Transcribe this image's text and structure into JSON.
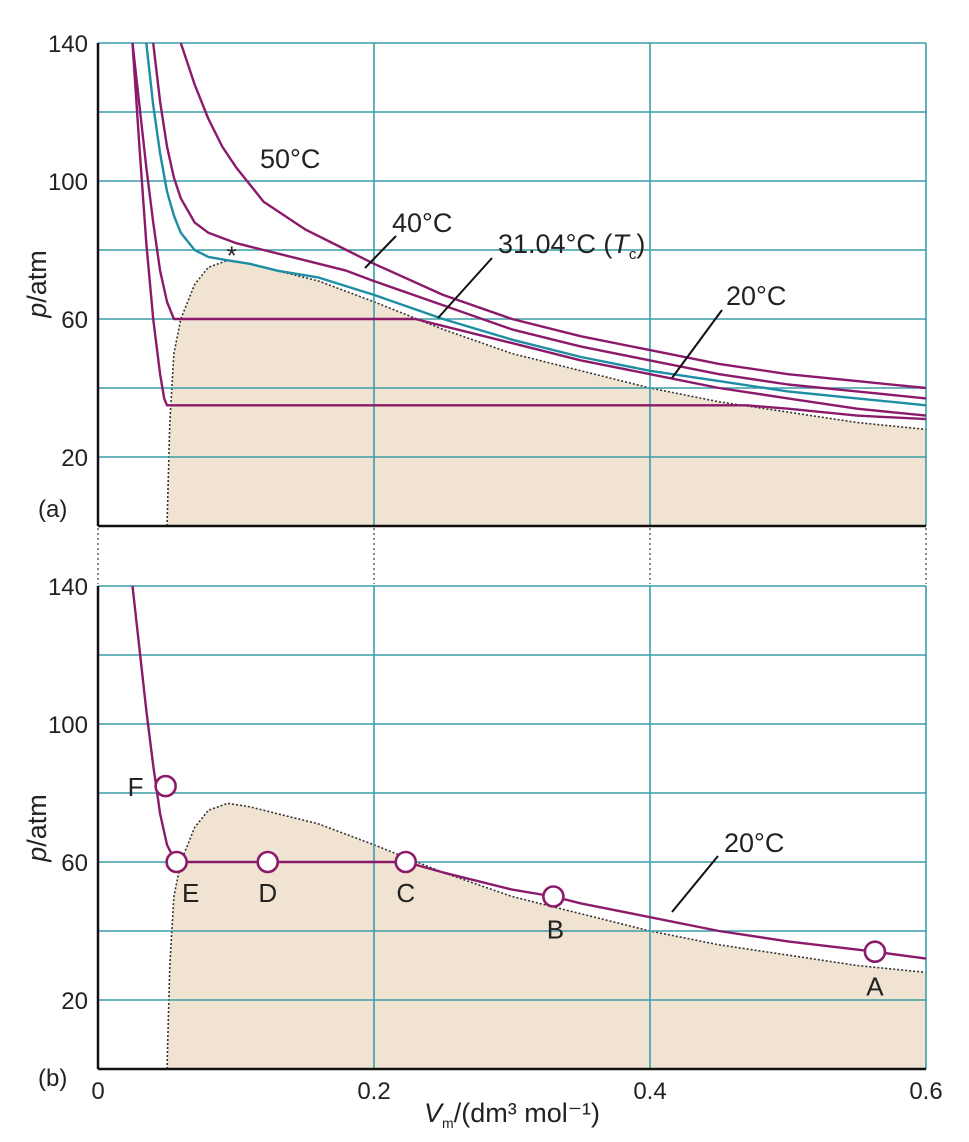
{
  "chart_data": [
    {
      "type": "line",
      "panel": "(a)",
      "ylabel": "p/atm",
      "xlim": [
        0,
        0.6
      ],
      "ylim": [
        0,
        140
      ],
      "y_ticks": [
        "20",
        "60",
        "100",
        "140"
      ],
      "grid": true,
      "fill_color": "#f0e3d1",
      "region_boundary": {
        "x": [
          0.05,
          0.052,
          0.055,
          0.06,
          0.07,
          0.08,
          0.094,
          0.11,
          0.13,
          0.16,
          0.2,
          0.25,
          0.3,
          0.35,
          0.4,
          0.45,
          0.5,
          0.55,
          0.6
        ],
        "y": [
          0,
          30,
          50,
          60,
          70,
          75,
          77,
          76,
          74,
          71,
          65,
          57,
          50,
          45,
          40,
          36,
          33,
          30,
          28
        ]
      },
      "critical_point": {
        "x": 0.094,
        "y": 77,
        "marker": "*"
      },
      "series": [
        {
          "name": "50°C",
          "color": "#8b1a6b",
          "x": [
            0.06,
            0.07,
            0.08,
            0.09,
            0.1,
            0.12,
            0.15,
            0.18,
            0.2,
            0.25,
            0.3,
            0.35,
            0.4,
            0.45,
            0.5,
            0.55,
            0.6
          ],
          "y": [
            140,
            128,
            118,
            110,
            104,
            94,
            86,
            80,
            76,
            67,
            60,
            55,
            51,
            47,
            44,
            42,
            40
          ]
        },
        {
          "name": "40°C",
          "color": "#8b1a6b",
          "x": [
            0.04,
            0.045,
            0.05,
            0.055,
            0.06,
            0.07,
            0.08,
            0.1,
            0.12,
            0.15,
            0.18,
            0.2,
            0.25,
            0.3,
            0.35,
            0.4,
            0.45,
            0.5,
            0.55,
            0.6
          ],
          "y": [
            140,
            123,
            110,
            101,
            95,
            88,
            85,
            82,
            80,
            77,
            74,
            71,
            64,
            57,
            52,
            48,
            44,
            41,
            39,
            37
          ]
        },
        {
          "name": "31.04°C (Tc)",
          "color": "#1d8ea3",
          "x": [
            0.035,
            0.04,
            0.045,
            0.05,
            0.055,
            0.06,
            0.07,
            0.08,
            0.094,
            0.11,
            0.13,
            0.16,
            0.2,
            0.25,
            0.3,
            0.35,
            0.4,
            0.45,
            0.5,
            0.55,
            0.6
          ],
          "y": [
            140,
            122,
            108,
            97,
            90,
            85,
            80,
            78,
            77,
            76,
            74,
            72,
            67,
            60,
            54,
            49,
            45,
            42,
            39,
            37,
            35
          ]
        },
        {
          "name": "20°C",
          "color": "#8b1a6b",
          "x": [
            0.025,
            0.03,
            0.035,
            0.04,
            0.045,
            0.05,
            0.055,
            0.06,
            0.08,
            0.1,
            0.15,
            0.2,
            0.23,
            0.25,
            0.3,
            0.35,
            0.4,
            0.45,
            0.5,
            0.55,
            0.6
          ],
          "y": [
            140,
            122,
            104,
            88,
            74,
            65,
            60,
            60,
            60,
            60,
            60,
            60,
            60,
            58,
            53,
            48,
            44,
            40,
            37,
            34,
            32
          ]
        },
        {
          "name": "",
          "color": "#8b1a6b",
          "x": [
            0.025,
            0.03,
            0.035,
            0.04,
            0.045,
            0.048,
            0.05,
            0.1,
            0.2,
            0.3,
            0.4,
            0.47,
            0.5,
            0.55,
            0.6
          ],
          "y": [
            140,
            110,
            82,
            60,
            44,
            37,
            35,
            35,
            35,
            35,
            35,
            35,
            34,
            32,
            31
          ]
        }
      ],
      "labels": [
        "50°C",
        "40°C",
        "31.04°C (",
        "T",
        "c",
        ")",
        "20°C"
      ]
    },
    {
      "type": "line",
      "panel": "(b)",
      "xlabel": "Vm/(dm³ mol⁻¹)",
      "ylabel": "p/atm",
      "xlim": [
        0,
        0.6
      ],
      "ylim": [
        0,
        140
      ],
      "x_ticks": [
        "0",
        "0.2",
        "0.4",
        "0.6"
      ],
      "y_ticks": [
        "20",
        "60",
        "100",
        "140"
      ],
      "grid": true,
      "series": [
        {
          "name": "20°C",
          "color": "#8b1a6b",
          "x": [
            0.025,
            0.03,
            0.035,
            0.04,
            0.045,
            0.05,
            0.055,
            0.057,
            0.1,
            0.15,
            0.2,
            0.223,
            0.25,
            0.3,
            0.33,
            0.35,
            0.4,
            0.45,
            0.5,
            0.563,
            0.6
          ],
          "y": [
            140,
            122,
            104,
            88,
            74,
            65,
            61,
            60,
            60,
            60,
            60,
            60,
            57,
            52,
            50,
            48,
            44,
            40,
            37,
            34,
            32
          ]
        }
      ],
      "points": [
        {
          "label": "A",
          "x": 0.563,
          "y": 34
        },
        {
          "label": "B",
          "x": 0.33,
          "y": 50
        },
        {
          "label": "C",
          "x": 0.223,
          "y": 60
        },
        {
          "label": "D",
          "x": 0.123,
          "y": 60
        },
        {
          "label": "E",
          "x": 0.057,
          "y": 60
        },
        {
          "label": "F",
          "x": 0.049,
          "y": 82
        }
      ]
    }
  ]
}
